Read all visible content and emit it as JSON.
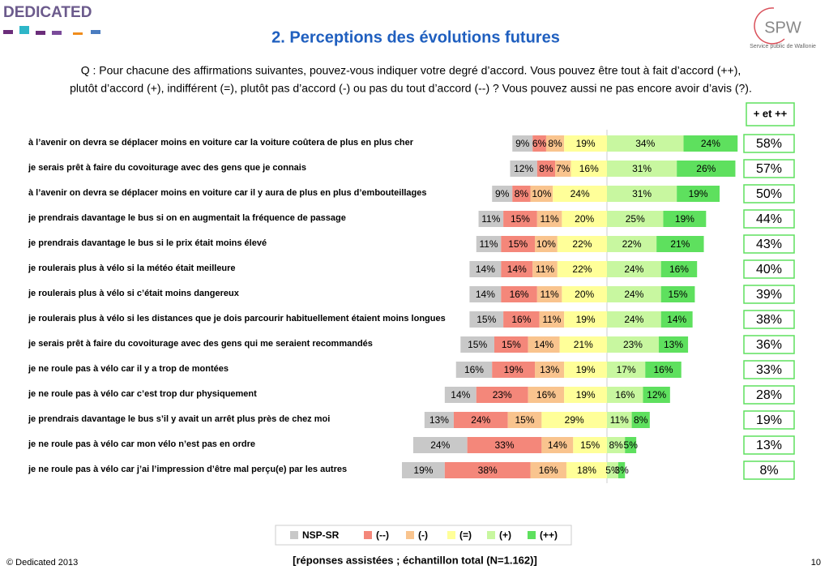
{
  "header": {
    "brand": "DEDICATED",
    "logo": "SPW",
    "logo_subtitle": "Service public de Wallonie"
  },
  "chart_data": {
    "type": "diverging-bar",
    "title": "2. Perceptions des évolutions futures",
    "question": [
      "Q : Pour chacune des affirmations suivantes, pouvez-vous indiquer votre degré d’accord. Vous pouvez être tout à fait d’accord (++),",
      "plutôt d’accord (+), indifférent (=), plutôt pas d’accord (-) ou pas du tout d’accord (--) ? Vous pouvez aussi ne pas encore avoir d’avis (?)."
    ],
    "categories": [
      "à l’avenir on devra se déplacer moins en voiture car la voiture coûtera de plus en plus cher",
      "je serais prêt à faire du covoiturage avec des gens que je connais",
      "à l’avenir on devra se déplacer moins en voiture car il y aura de plus en plus d’embouteillages",
      "je prendrais davantage le bus si on en augmentait la fréquence de passage",
      "je prendrais davantage le bus si le prix était moins élevé",
      "je roulerais plus à vélo si la météo était meilleure",
      "je roulerais plus à vélo si c’était moins dangereux",
      "je roulerais plus à vélo si les distances que je dois parcourir habituellement étaient moins longues",
      "je serais prêt à faire du covoiturage avec des gens qui me seraient recommandés",
      "je ne roule pas à vélo car il y a trop de montées",
      "je ne roule pas à vélo car c’est trop dur physiquement",
      "je prendrais davantage le bus s’il y avait un arrêt plus près de chez moi",
      "je ne roule pas à vélo car mon vélo n’est pas en ordre",
      "je ne roule pas à vélo car j’ai l’impression d’être mal perçu(e) par les autres"
    ],
    "series": [
      {
        "name": "NSP-SR",
        "color": "#c8c8c8",
        "values": [
          9,
          12,
          9,
          11,
          11,
          14,
          14,
          15,
          15,
          16,
          14,
          13,
          24,
          19
        ],
        "value_labels": [
          "9%",
          "12%",
          "9%",
          "11%",
          "11%",
          "14%",
          "14%",
          "15%",
          "15%",
          "16%",
          "14%",
          "13%",
          "24%",
          "19%"
        ]
      },
      {
        "name": "(--)",
        "color": "#f4877a",
        "values": [
          6,
          8,
          8,
          15,
          15,
          14,
          16,
          16,
          15,
          19,
          23,
          24,
          33,
          38
        ],
        "value_labels": [
          "6%",
          "8%",
          "8%",
          "15%",
          "15%",
          "14%",
          "16%",
          "16%",
          "15%",
          "19%",
          "23%",
          "24%",
          "33%",
          "38%"
        ]
      },
      {
        "name": "(-)",
        "color": "#f9c48e",
        "values": [
          8,
          7,
          10,
          11,
          10,
          11,
          11,
          11,
          14,
          13,
          16,
          15,
          14,
          16
        ],
        "value_labels": [
          "8%",
          "7%",
          "10%",
          "11%",
          "10%",
          "11%",
          "11%",
          "11%",
          "14%",
          "13%",
          "16%",
          "15%",
          "14%",
          "16%"
        ]
      },
      {
        "name": "(=)",
        "color": "#ffff99",
        "values": [
          19,
          16,
          24,
          20,
          22,
          22,
          20,
          19,
          21,
          19,
          19,
          29,
          15,
          18
        ],
        "value_labels": [
          "19%",
          "16%",
          "24%",
          "20%",
          "22%",
          "22%",
          "20%",
          "19%",
          "21%",
          "19%",
          "19%",
          "29%",
          "15%",
          "18%"
        ]
      },
      {
        "name": "(+)",
        "color": "#c8f7a0",
        "values": [
          34,
          31,
          31,
          25,
          22,
          24,
          24,
          24,
          23,
          17,
          16,
          11,
          8,
          5
        ],
        "value_labels": [
          "34%",
          "31%",
          "31%",
          "25%",
          "22%",
          "24%",
          "24%",
          "24%",
          "23%",
          "17%",
          "16%",
          "11%",
          "8%",
          "5%"
        ]
      },
      {
        "name": "(++)",
        "color": "#5ee05e",
        "values": [
          24,
          26,
          19,
          19,
          21,
          16,
          15,
          14,
          13,
          16,
          12,
          8,
          5,
          3
        ],
        "value_labels": [
          "24%",
          "26%",
          "19%",
          "19%",
          "21%",
          "16%",
          "15%",
          "14%",
          "13%",
          "16%",
          "12%",
          "8%",
          "5%",
          "3%"
        ]
      }
    ],
    "totals_title": "+ et ++",
    "totals": [
      58,
      57,
      50,
      44,
      43,
      40,
      39,
      38,
      36,
      33,
      28,
      19,
      13,
      8
    ],
    "totals_labels": [
      "58%",
      "57%",
      "50%",
      "44%",
      "43%",
      "40%",
      "39%",
      "38%",
      "36%",
      "33%",
      "28%",
      "19%",
      "13%",
      "8%"
    ],
    "note": "[réponses assistées ; échantillon total (N=1.162)]"
  },
  "footer": {
    "copyright": "© Dedicated 2013",
    "page": "10"
  }
}
